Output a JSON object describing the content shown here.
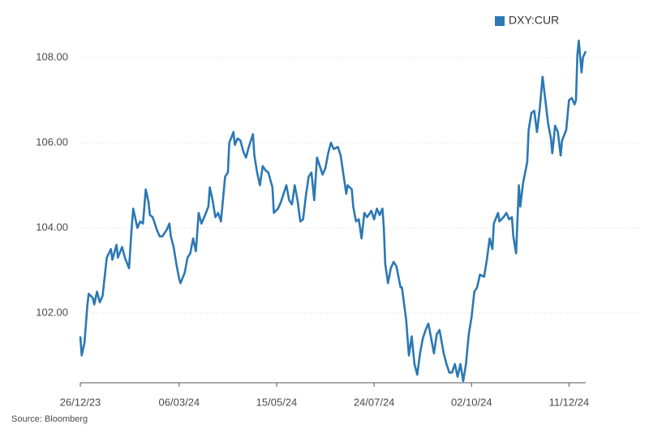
{
  "chart_data": {
    "type": "line",
    "x": [
      "26/12/23",
      "27/12/23",
      "29/12/23",
      "31/12/23",
      "01/01/24",
      "04/01/24",
      "05/01/24",
      "07/01/24",
      "09/01/24",
      "11/01/24",
      "14/01/24",
      "17/01/24",
      "18/01/24",
      "21/01/24",
      "22/01/24",
      "25/01/24",
      "27/01/24",
      "30/01/24",
      "01/02/24",
      "02/02/24",
      "05/02/24",
      "07/02/24",
      "09/02/24",
      "11/02/24",
      "13/02/24",
      "14/02/24",
      "16/02/24",
      "19/02/24",
      "21/02/24",
      "23/02/24",
      "26/02/24",
      "28/02/24",
      "29/02/24",
      "02/03/24",
      "04/03/24",
      "06/03/24",
      "07/03/24",
      "10/03/24",
      "12/03/24",
      "14/03/24",
      "16/03/24",
      "18/03/24",
      "20/03/24",
      "22/03/24",
      "24/03/24",
      "27/03/24",
      "28/03/24",
      "30/03/24",
      "01/04/24",
      "03/04/24",
      "05/04/24",
      "08/04/24",
      "10/04/24",
      "11/04/24",
      "14/04/24",
      "15/04/24",
      "17/04/24",
      "19/04/24",
      "21/04/24",
      "23/04/24",
      "25/04/24",
      "28/04/24",
      "29/04/24",
      "01/05/24",
      "03/05/24",
      "05/05/24",
      "07/05/24",
      "09/05/24",
      "12/05/24",
      "13/05/24",
      "16/05/24",
      "18/05/24",
      "20/05/24",
      "22/05/24",
      "24/05/24",
      "26/05/24",
      "28/05/24",
      "30/05/24",
      "01/06/24",
      "03/06/24",
      "05/06/24",
      "07/06/24",
      "09/06/24",
      "11/06/24",
      "13/06/24",
      "14/06/24",
      "17/06/24",
      "19/06/24",
      "21/06/24",
      "23/06/24",
      "25/06/24",
      "28/06/24",
      "30/06/24",
      "02/07/24",
      "04/07/24",
      "05/07/24",
      "08/07/24",
      "09/07/24",
      "11/07/24",
      "13/07/24",
      "15/07/24",
      "17/07/24",
      "19/07/24",
      "22/07/24",
      "24/07/24",
      "26/07/24",
      "28/07/24",
      "30/07/24",
      "31/07/24",
      "01/08/24",
      "03/08/24",
      "05/08/24",
      "07/08/24",
      "09/08/24",
      "12/08/24",
      "13/08/24",
      "16/08/24",
      "18/08/24",
      "20/08/24",
      "22/08/24",
      "24/08/24",
      "26/08/24",
      "28/08/24",
      "30/08/24",
      "01/09/24",
      "03/09/24",
      "05/09/24",
      "07/09/24",
      "09/09/24",
      "12/09/24",
      "14/09/24",
      "16/09/24",
      "18/09/24",
      "20/09/24",
      "22/09/24",
      "24/09/24",
      "26/09/24",
      "28/09/24",
      "30/09/24",
      "02/10/24",
      "04/10/24",
      "06/10/24",
      "08/10/24",
      "11/10/24",
      "13/10/24",
      "15/10/24",
      "17/10/24",
      "18/10/24",
      "21/10/24",
      "22/10/24",
      "25/10/24",
      "27/10/24",
      "29/10/24",
      "31/10/24",
      "01/11/24",
      "03/11/24",
      "05/11/24",
      "06/11/24",
      "08/11/24",
      "11/11/24",
      "12/11/24",
      "14/11/24",
      "16/11/24",
      "18/11/24",
      "20/11/24",
      "22/11/24",
      "24/11/24",
      "26/11/24",
      "28/11/24",
      "29/11/24",
      "01/12/24",
      "03/12/24",
      "05/12/24",
      "06/12/24",
      "09/12/24",
      "11/12/24",
      "13/12/24",
      "15/12/24",
      "16/12/24",
      "17/12/24",
      "18/12/24",
      "20/12/24",
      "21/12/24",
      "23/12/24"
    ],
    "series": [
      {
        "name": "DXY:CUR",
        "color": "#2b78b4",
        "values": [
          101.45,
          101.0,
          101.3,
          102.15,
          102.45,
          102.35,
          102.2,
          102.5,
          102.25,
          102.4,
          103.3,
          103.5,
          103.25,
          103.6,
          103.3,
          103.55,
          103.3,
          103.05,
          104.05,
          104.45,
          104.0,
          104.15,
          104.1,
          104.9,
          104.6,
          104.3,
          104.25,
          103.95,
          103.8,
          103.8,
          103.95,
          104.1,
          103.8,
          103.55,
          103.15,
          102.8,
          102.7,
          102.95,
          103.3,
          103.4,
          103.75,
          103.45,
          104.35,
          104.1,
          104.25,
          104.5,
          104.95,
          104.65,
          104.25,
          104.35,
          104.15,
          105.2,
          105.3,
          106.0,
          106.25,
          105.95,
          106.1,
          106.05,
          105.8,
          105.65,
          105.9,
          106.2,
          105.7,
          105.3,
          105.0,
          105.45,
          105.35,
          105.3,
          104.95,
          104.35,
          104.45,
          104.6,
          104.8,
          105.0,
          104.65,
          104.55,
          105.0,
          104.65,
          104.15,
          104.2,
          104.75,
          105.2,
          105.3,
          104.65,
          105.65,
          105.55,
          105.25,
          105.4,
          105.75,
          106.0,
          105.85,
          105.9,
          105.7,
          105.25,
          104.8,
          105.0,
          104.9,
          104.5,
          104.15,
          104.2,
          103.75,
          104.35,
          104.25,
          104.4,
          104.2,
          104.45,
          104.3,
          104.45,
          104.0,
          103.15,
          102.7,
          103.05,
          103.2,
          103.1,
          102.6,
          102.6,
          101.85,
          101.0,
          101.45,
          100.8,
          100.55,
          101.05,
          101.4,
          101.6,
          101.75,
          101.4,
          101.05,
          101.5,
          101.6,
          101.05,
          100.8,
          100.6,
          100.6,
          100.8,
          100.5,
          100.8,
          100.4,
          100.8,
          101.5,
          101.9,
          102.5,
          102.6,
          102.9,
          102.85,
          103.25,
          103.75,
          103.5,
          104.1,
          104.35,
          104.15,
          104.25,
          104.35,
          104.2,
          104.25,
          103.8,
          103.4,
          105.0,
          104.5,
          105.05,
          105.55,
          106.3,
          106.7,
          106.75,
          106.25,
          106.8,
          107.55,
          107.0,
          106.45,
          106.1,
          105.75,
          106.4,
          106.25,
          105.7,
          106.05,
          106.3,
          107.0,
          107.05,
          106.9,
          107.0,
          108.05,
          108.4,
          107.65,
          108.0,
          108.15
        ]
      }
    ],
    "xlim": [
      "26/12/23",
      "23/12/24"
    ],
    "xticks": [
      "26/12/23",
      "06/03/24",
      "15/05/24",
      "24/07/24",
      "02/10/24",
      "11/12/24"
    ],
    "ylim": [
      100.36,
      108.6
    ],
    "yticks": [
      {
        "value": 102,
        "label": "102.00"
      },
      {
        "value": 104,
        "label": "104.00"
      },
      {
        "value": 106,
        "label": "106.00"
      },
      {
        "value": 108,
        "label": "108.00"
      }
    ],
    "grid": true,
    "legend": "top-right",
    "source": "Source: Bloomberg"
  }
}
